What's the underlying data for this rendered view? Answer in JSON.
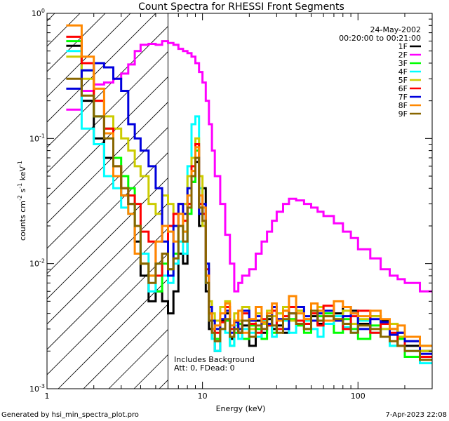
{
  "chart_data": {
    "type": "line",
    "title": "Count Spectra for RHESSI Front Segments",
    "xlabel": "Energy (keV)",
    "ylabel_main": "counts cm",
    "ylabel_sup1": "-2",
    "ylabel_mid": " s",
    "ylabel_sup2": "-1",
    "ylabel_mid2": " keV",
    "ylabel_sup3": "-1",
    "xscale": "log",
    "yscale": "log",
    "xlim": [
      1,
      300
    ],
    "ylim": [
      0.001,
      1.0
    ],
    "x_ticks": [
      {
        "value": 1,
        "label": "1"
      },
      {
        "value": 10,
        "label": "10"
      },
      {
        "value": 100,
        "label": "100"
      }
    ],
    "y_ticks": [
      {
        "value": 1.0,
        "base": "10",
        "exp": "0"
      },
      {
        "value": 0.1,
        "base": "10",
        "exp": "-1"
      },
      {
        "value": 0.01,
        "base": "10",
        "exp": "-2"
      },
      {
        "value": 0.001,
        "base": "10",
        "exp": "-3"
      }
    ],
    "date": "24-May-2002",
    "time_range": "00:20:00 to 00:21:00",
    "cutoff_energy_kev": 6.0,
    "annotation_line1": "Includes Background",
    "annotation_line2": "Att: 0, FDead: 0",
    "legend_position": "top-right",
    "energy_bins_kev": [
      1.33,
      1.67,
      2.0,
      2.33,
      2.67,
      3.0,
      3.33,
      3.67,
      4.0,
      4.5,
      5.0,
      5.5,
      6.0,
      6.5,
      7.0,
      7.5,
      8.0,
      8.5,
      9.0,
      9.5,
      10.0,
      10.5,
      11.0,
      11.5,
      12.0,
      13.0,
      14.0,
      15.0,
      16.0,
      17.0,
      18.0,
      20.0,
      22.0,
      24.0,
      26.0,
      28.0,
      30.0,
      33.0,
      36.0,
      40.0,
      45.0,
      50.0,
      55.0,
      60.0,
      70.0,
      80.0,
      90.0,
      100.0,
      120.0,
      140.0,
      160.0,
      180.0,
      200.0,
      250.0,
      300.0
    ],
    "series": [
      {
        "name": "1F",
        "color": "#000000",
        "values": [
          0.55,
          0.2,
          0.1,
          0.07,
          0.05,
          0.035,
          0.03,
          0.015,
          0.008,
          0.005,
          0.006,
          0.005,
          0.004,
          0.006,
          0.012,
          0.01,
          0.03,
          0.045,
          0.065,
          0.02,
          0.04,
          0.006,
          0.003,
          0.0025,
          0.002,
          0.0035,
          0.004,
          0.0025,
          0.003,
          0.0028,
          0.0032,
          0.0022,
          0.0035,
          0.0028,
          0.0036,
          0.003,
          0.0032,
          0.0028,
          0.0035,
          0.0042,
          0.003,
          0.0038,
          0.0033,
          0.0035,
          0.004,
          0.0045,
          0.0042,
          0.0033,
          0.0038,
          0.0035,
          0.003,
          0.0028,
          0.0022,
          0.002,
          0.0015
        ]
      },
      {
        "name": "2F",
        "color": "#ff00ff",
        "values": [
          0.17,
          0.24,
          0.27,
          0.28,
          0.3,
          0.33,
          0.39,
          0.5,
          0.56,
          0.57,
          0.56,
          0.6,
          0.58,
          0.56,
          0.52,
          0.5,
          0.48,
          0.45,
          0.4,
          0.34,
          0.28,
          0.2,
          0.13,
          0.08,
          0.05,
          0.03,
          0.017,
          0.01,
          0.006,
          0.007,
          0.008,
          0.009,
          0.012,
          0.015,
          0.018,
          0.022,
          0.026,
          0.03,
          0.033,
          0.032,
          0.03,
          0.028,
          0.026,
          0.024,
          0.021,
          0.018,
          0.016,
          0.013,
          0.011,
          0.009,
          0.008,
          0.0075,
          0.007,
          0.006,
          0.0045
        ]
      },
      {
        "name": "3F",
        "color": "#00ff00",
        "values": [
          0.6,
          0.35,
          0.15,
          0.12,
          0.07,
          0.05,
          0.04,
          0.02,
          0.01,
          0.008,
          0.006,
          0.01,
          0.009,
          0.012,
          0.02,
          0.018,
          0.025,
          0.045,
          0.08,
          0.03,
          0.025,
          0.008,
          0.004,
          0.003,
          0.0025,
          0.003,
          0.0035,
          0.0022,
          0.0028,
          0.0033,
          0.0025,
          0.0032,
          0.003,
          0.0025,
          0.0038,
          0.0028,
          0.0035,
          0.0042,
          0.0036,
          0.0032,
          0.0028,
          0.0035,
          0.0038,
          0.004,
          0.0028,
          0.0036,
          0.003,
          0.0025,
          0.0032,
          0.0026,
          0.0022,
          0.0025,
          0.0018,
          0.0022,
          0.0013
        ]
      },
      {
        "name": "4F",
        "color": "#00ffff",
        "values": [
          0.5,
          0.12,
          0.09,
          0.05,
          0.04,
          0.028,
          0.025,
          0.02,
          0.012,
          0.006,
          0.01,
          0.008,
          0.007,
          0.01,
          0.015,
          0.012,
          0.06,
          0.13,
          0.15,
          0.04,
          0.02,
          0.007,
          0.0035,
          0.0025,
          0.002,
          0.003,
          0.0028,
          0.0022,
          0.0032,
          0.0025,
          0.003,
          0.0028,
          0.0026,
          0.0035,
          0.0032,
          0.0026,
          0.004,
          0.0035,
          0.0028,
          0.0033,
          0.0035,
          0.003,
          0.0026,
          0.0033,
          0.0038,
          0.0031,
          0.0028,
          0.0035,
          0.0028,
          0.003,
          0.0022,
          0.0026,
          0.002,
          0.0016,
          0.0012
        ]
      },
      {
        "name": "5F",
        "color": "#cccc00",
        "values": [
          0.45,
          0.3,
          0.2,
          0.15,
          0.12,
          0.1,
          0.08,
          0.06,
          0.05,
          0.03,
          0.025,
          0.035,
          0.03,
          0.025,
          0.02,
          0.03,
          0.05,
          0.07,
          0.1,
          0.05,
          0.02,
          0.01,
          0.005,
          0.004,
          0.0035,
          0.0045,
          0.005,
          0.003,
          0.004,
          0.0035,
          0.0045,
          0.003,
          0.004,
          0.0033,
          0.0042,
          0.0038,
          0.004,
          0.0045,
          0.0035,
          0.0042,
          0.0036,
          0.004,
          0.0045,
          0.0038,
          0.0035,
          0.0042,
          0.0033,
          0.0036,
          0.0038,
          0.003,
          0.0033,
          0.0026,
          0.0024,
          0.002,
          0.0016
        ]
      },
      {
        "name": "6F",
        "color": "#ff0000",
        "values": [
          0.65,
          0.4,
          0.2,
          0.12,
          0.06,
          0.04,
          0.035,
          0.03,
          0.018,
          0.015,
          0.008,
          0.012,
          0.02,
          0.025,
          0.03,
          0.022,
          0.03,
          0.06,
          0.09,
          0.03,
          0.025,
          0.009,
          0.004,
          0.003,
          0.0028,
          0.0034,
          0.0045,
          0.003,
          0.0035,
          0.0028,
          0.004,
          0.0033,
          0.0028,
          0.0036,
          0.0032,
          0.0042,
          0.003,
          0.0038,
          0.0045,
          0.0035,
          0.0033,
          0.004,
          0.0032,
          0.0046,
          0.0035,
          0.003,
          0.0038,
          0.0042,
          0.0028,
          0.0033,
          0.0028,
          0.0022,
          0.0026,
          0.0018,
          0.0014
        ]
      },
      {
        "name": "7F",
        "color": "#0000dd",
        "values": [
          0.25,
          0.35,
          0.4,
          0.37,
          0.3,
          0.24,
          0.13,
          0.1,
          0.08,
          0.06,
          0.04,
          0.015,
          0.008,
          0.02,
          0.03,
          0.025,
          0.04,
          0.05,
          0.07,
          0.025,
          0.03,
          0.01,
          0.0045,
          0.0035,
          0.003,
          0.0036,
          0.0042,
          0.0028,
          0.0034,
          0.003,
          0.0042,
          0.0035,
          0.0038,
          0.003,
          0.0033,
          0.0045,
          0.0036,
          0.003,
          0.004,
          0.0045,
          0.0038,
          0.0035,
          0.004,
          0.0042,
          0.0035,
          0.0038,
          0.004,
          0.003,
          0.0036,
          0.0034,
          0.0027,
          0.0028,
          0.0024,
          0.0019,
          0.0016
        ]
      },
      {
        "name": "8F",
        "color": "#ff8800",
        "values": [
          0.8,
          0.45,
          0.25,
          0.11,
          0.05,
          0.035,
          0.025,
          0.012,
          0.01,
          0.008,
          0.015,
          0.02,
          0.018,
          0.015,
          0.025,
          0.018,
          0.035,
          0.055,
          0.085,
          0.035,
          0.028,
          0.008,
          0.004,
          0.003,
          0.0032,
          0.004,
          0.0048,
          0.0032,
          0.0035,
          0.0042,
          0.0028,
          0.0036,
          0.0045,
          0.0034,
          0.004,
          0.0048,
          0.0035,
          0.0042,
          0.0055,
          0.004,
          0.0036,
          0.0048,
          0.0042,
          0.0035,
          0.005,
          0.0045,
          0.004,
          0.0038,
          0.0042,
          0.0036,
          0.003,
          0.0032,
          0.0026,
          0.0022,
          0.0018
        ]
      },
      {
        "name": "9F",
        "color": "#886600",
        "values": [
          0.3,
          0.22,
          0.15,
          0.1,
          0.06,
          0.04,
          0.03,
          0.02,
          0.01,
          0.007,
          0.01,
          0.012,
          0.009,
          0.011,
          0.02,
          0.015,
          0.028,
          0.05,
          0.07,
          0.028,
          0.022,
          0.007,
          0.0035,
          0.0028,
          0.0024,
          0.003,
          0.0036,
          0.0026,
          0.003,
          0.0028,
          0.0035,
          0.0026,
          0.0032,
          0.003,
          0.0038,
          0.0032,
          0.0028,
          0.0036,
          0.004,
          0.0033,
          0.003,
          0.0042,
          0.0035,
          0.0038,
          0.0036,
          0.0033,
          0.0028,
          0.0032,
          0.003,
          0.0026,
          0.0024,
          0.0022,
          0.002,
          0.0017,
          0.0013
        ]
      }
    ]
  },
  "footer": {
    "generated_by": "Generated by hsi_min_spectra_plot.pro",
    "timestamp": "7-Apr-2023 22:08"
  }
}
